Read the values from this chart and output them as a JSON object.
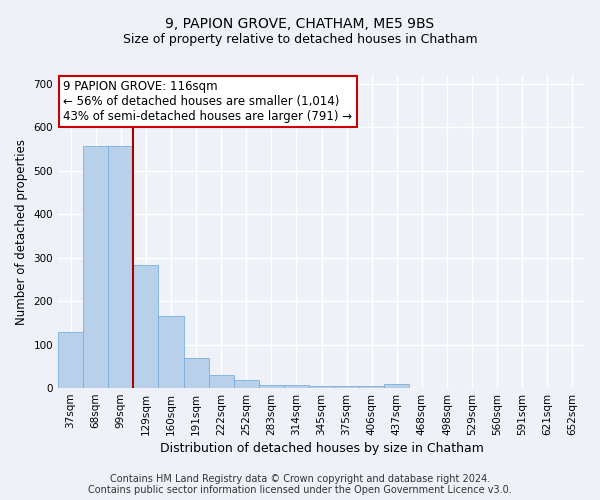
{
  "title": "9, PAPION GROVE, CHATHAM, ME5 9BS",
  "subtitle": "Size of property relative to detached houses in Chatham",
  "xlabel": "Distribution of detached houses by size in Chatham",
  "ylabel": "Number of detached properties",
  "categories": [
    "37sqm",
    "68sqm",
    "99sqm",
    "129sqm",
    "160sqm",
    "191sqm",
    "222sqm",
    "252sqm",
    "283sqm",
    "314sqm",
    "345sqm",
    "375sqm",
    "406sqm",
    "437sqm",
    "468sqm",
    "498sqm",
    "529sqm",
    "560sqm",
    "591sqm",
    "621sqm",
    "652sqm"
  ],
  "values": [
    128,
    557,
    557,
    282,
    165,
    70,
    31,
    18,
    8,
    8,
    5,
    5,
    5,
    10,
    0,
    0,
    0,
    0,
    0,
    0,
    0
  ],
  "bar_color": "#b8d0ea",
  "bar_edge_color": "#7aafe0",
  "vline_x": 2.5,
  "vline_color": "#aa0000",
  "annotation_line1": "9 PAPION GROVE: 116sqm",
  "annotation_line2": "← 56% of detached houses are smaller (1,014)",
  "annotation_line3": "43% of semi-detached houses are larger (791) →",
  "annotation_box_color": "#ffffff",
  "annotation_box_edge_color": "#cc0000",
  "ylim": [
    0,
    720
  ],
  "yticks": [
    0,
    100,
    200,
    300,
    400,
    500,
    600,
    700
  ],
  "footer_line1": "Contains HM Land Registry data © Crown copyright and database right 2024.",
  "footer_line2": "Contains public sector information licensed under the Open Government Licence v3.0.",
  "background_color": "#eef2f8",
  "plot_bg_color": "#eef2f8",
  "grid_color": "#ffffff",
  "title_fontsize": 10,
  "subtitle_fontsize": 9,
  "tick_fontsize": 7.5,
  "ylabel_fontsize": 8.5,
  "xlabel_fontsize": 9,
  "footer_fontsize": 7
}
